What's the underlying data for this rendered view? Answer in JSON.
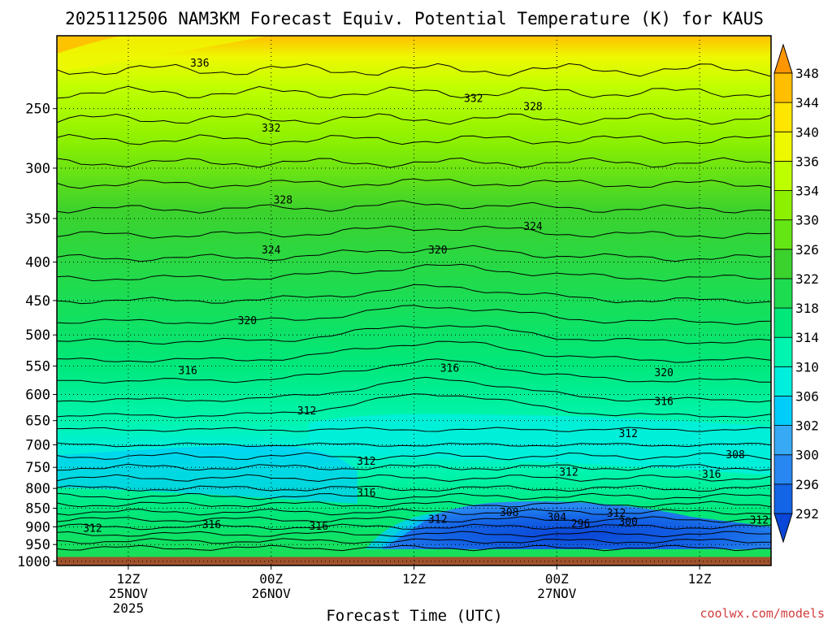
{
  "chart_data": {
    "type": "heatmap",
    "title": "2025112506 NAM3KM Forecast Equiv. Potential Temperature (K) for KAUS",
    "xlabel": "Forecast Time (UTC)",
    "ylabel": "",
    "watermark": "coolwx.com/models",
    "x_ticks": [
      {
        "label": "12Z",
        "date": "25NOV",
        "year": "2025",
        "hour": 6
      },
      {
        "label": "00Z",
        "date": "26NOV",
        "year": "",
        "hour": 18
      },
      {
        "label": "12Z",
        "date": "",
        "year": "",
        "hour": 30
      },
      {
        "label": "00Z",
        "date": "27NOV",
        "year": "",
        "hour": 42
      },
      {
        "label": "12Z",
        "date": "",
        "year": "",
        "hour": 54
      }
    ],
    "x_range_hours": [
      0,
      60
    ],
    "y_ticks": [
      250,
      300,
      350,
      400,
      450,
      500,
      550,
      600,
      650,
      700,
      750,
      800,
      850,
      900,
      950,
      1000
    ],
    "y_range_hPa": [
      200,
      1013
    ],
    "ground_hPa": 987,
    "colorbar": {
      "levels": [
        292,
        296,
        300,
        302,
        306,
        310,
        314,
        318,
        322,
        326,
        330,
        334,
        336,
        340,
        344,
        348
      ],
      "colors": [
        "#0a46d8",
        "#1464e6",
        "#2887f0",
        "#37a9f5",
        "#00cdfa",
        "#00eedc",
        "#00f5b0",
        "#00e87a",
        "#1edc50",
        "#3cd22d",
        "#64e614",
        "#8cf000",
        "#beff00",
        "#eef800",
        "#ffe600",
        "#ffbe00",
        "#ff9600"
      ]
    },
    "contour_labels": [
      {
        "value": "336",
        "hour": 12,
        "hPa": 217
      },
      {
        "value": "332",
        "hour": 18,
        "hPa": 265
      },
      {
        "value": "332",
        "hour": 35,
        "hPa": 242
      },
      {
        "value": "328",
        "hour": 40,
        "hPa": 248
      },
      {
        "value": "328",
        "hour": 19,
        "hPa": 330
      },
      {
        "value": "324",
        "hour": 18,
        "hPa": 385
      },
      {
        "value": "324",
        "hour": 40,
        "hPa": 358
      },
      {
        "value": "320",
        "hour": 32,
        "hPa": 385
      },
      {
        "value": "320",
        "hour": 16,
        "hPa": 478
      },
      {
        "value": "320",
        "hour": 51,
        "hPa": 560
      },
      {
        "value": "316",
        "hour": 11,
        "hPa": 557
      },
      {
        "value": "316",
        "hour": 33,
        "hPa": 553
      },
      {
        "value": "316",
        "hour": 51,
        "hPa": 612
      },
      {
        "value": "316",
        "hour": 55,
        "hPa": 765
      },
      {
        "value": "316",
        "hour": 13,
        "hPa": 892
      },
      {
        "value": "316",
        "hour": 22,
        "hPa": 897
      },
      {
        "value": "316",
        "hour": 26,
        "hPa": 810
      },
      {
        "value": "312",
        "hour": 21,
        "hPa": 630
      },
      {
        "value": "312",
        "hour": 48,
        "hPa": 675
      },
      {
        "value": "312",
        "hour": 26,
        "hPa": 735
      },
      {
        "value": "312",
        "hour": 43,
        "hPa": 760
      },
      {
        "value": "312",
        "hour": 3,
        "hPa": 902
      },
      {
        "value": "312",
        "hour": 32,
        "hPa": 878
      },
      {
        "value": "312",
        "hour": 47,
        "hPa": 862
      },
      {
        "value": "312",
        "hour": 59,
        "hPa": 880
      },
      {
        "value": "308",
        "hour": 38,
        "hPa": 860
      },
      {
        "value": "308",
        "hour": 57,
        "hPa": 720
      },
      {
        "value": "304",
        "hour": 42,
        "hPa": 872
      },
      {
        "value": "300",
        "hour": 48,
        "hPa": 885
      },
      {
        "value": "296",
        "hour": 44,
        "hPa": 890
      }
    ]
  }
}
